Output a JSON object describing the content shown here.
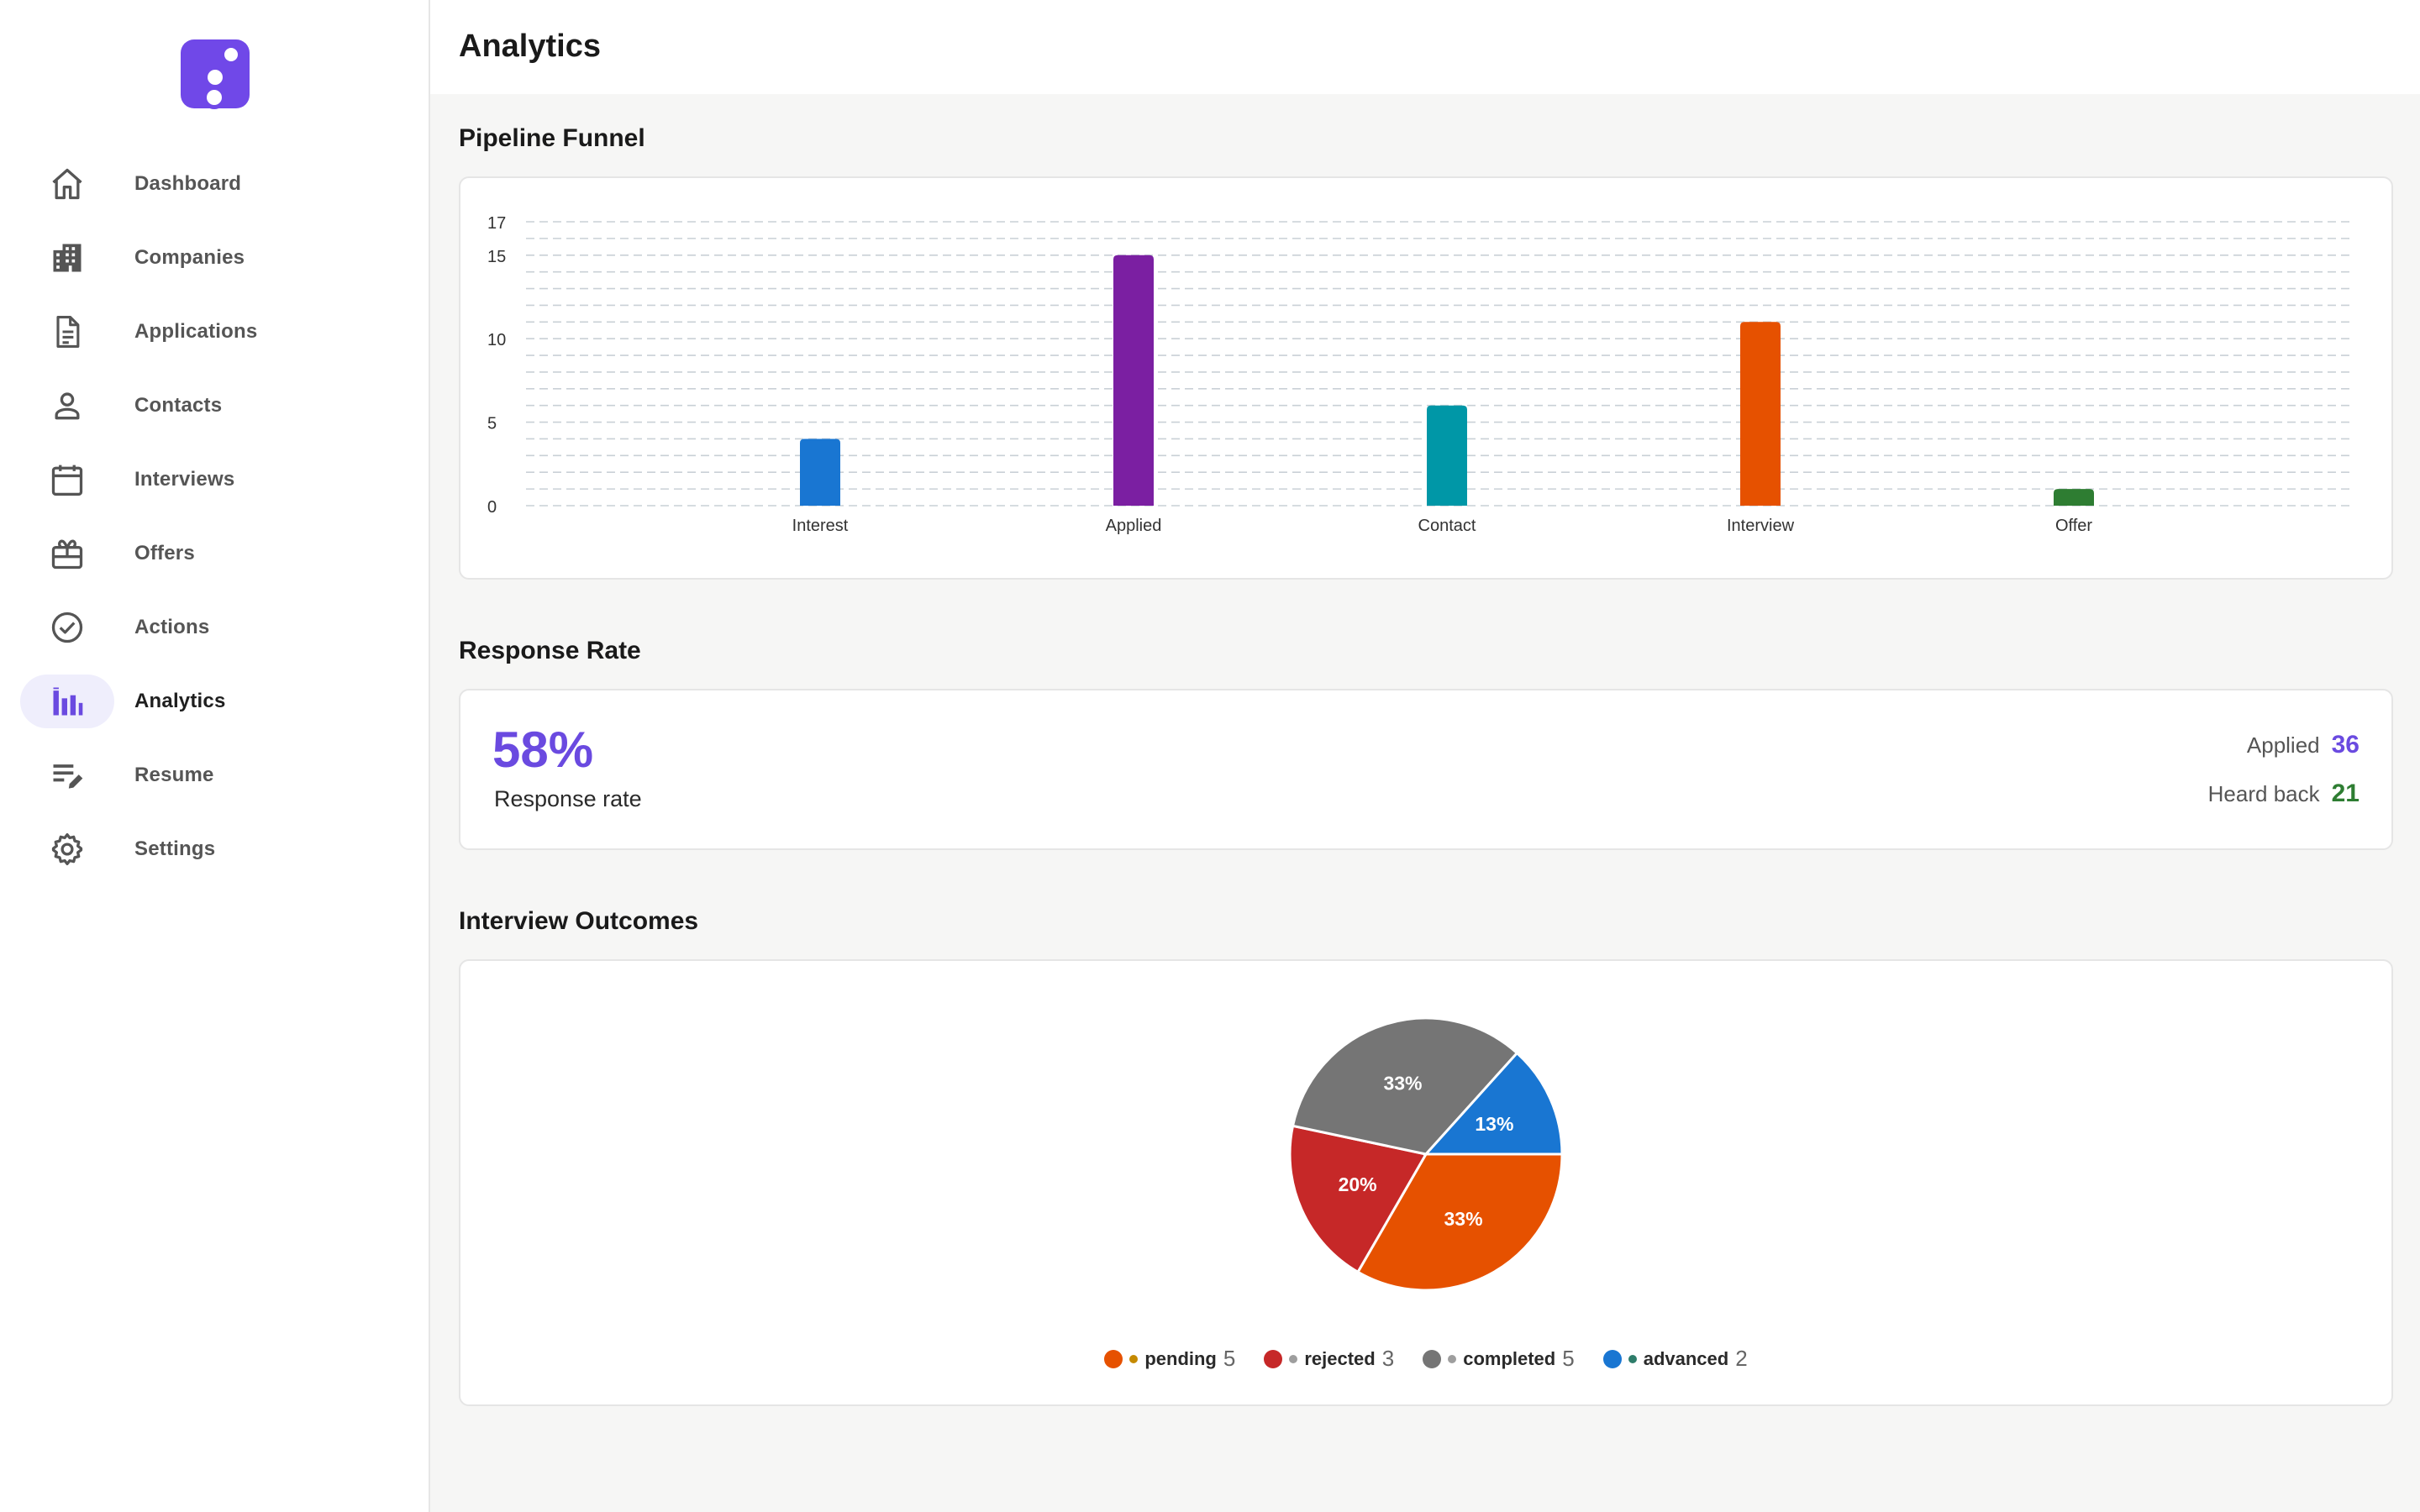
{
  "page": {
    "title": "Analytics"
  },
  "sidebar": {
    "items": [
      {
        "label": "Dashboard",
        "icon": "home-icon",
        "active": false
      },
      {
        "label": "Companies",
        "icon": "building-icon",
        "active": false
      },
      {
        "label": "Applications",
        "icon": "document-icon",
        "active": false
      },
      {
        "label": "Contacts",
        "icon": "person-icon",
        "active": false
      },
      {
        "label": "Interviews",
        "icon": "calendar-icon",
        "active": false
      },
      {
        "label": "Offers",
        "icon": "gift-icon",
        "active": false
      },
      {
        "label": "Actions",
        "icon": "check-circle-icon",
        "active": false
      },
      {
        "label": "Analytics",
        "icon": "bar-chart-icon",
        "active": true
      },
      {
        "label": "Resume",
        "icon": "edit-list-icon",
        "active": false
      },
      {
        "label": "Settings",
        "icon": "gear-icon",
        "active": false
      }
    ]
  },
  "sections": {
    "funnel_title": "Pipeline Funnel",
    "response_title": "Response Rate",
    "outcomes_title": "Interview Outcomes"
  },
  "response": {
    "rate": "58%",
    "rate_label": "Response rate",
    "applied_label": "Applied",
    "applied_value": "36",
    "heard_label": "Heard back",
    "heard_value": "21"
  },
  "colors": {
    "accent": "#6a4ae0",
    "green": "#2e7d32"
  },
  "chart_data": [
    {
      "type": "bar",
      "categories": [
        "Interest",
        "Applied",
        "Contact",
        "Interview",
        "Offer"
      ],
      "values": [
        4,
        15,
        6,
        11,
        1
      ],
      "colors": [
        "#1976d2",
        "#7b1fa2",
        "#0097a7",
        "#e65100",
        "#2e7d32"
      ],
      "yticks": [
        0,
        5,
        10,
        15,
        17
      ],
      "ylim": [
        0,
        17
      ],
      "grid": true
    },
    {
      "type": "pie",
      "slices": [
        {
          "label": "pending",
          "value": 5,
          "percent": "33%",
          "color": "#e65100"
        },
        {
          "label": "rejected",
          "value": 3,
          "percent": "20%",
          "color": "#c62828"
        },
        {
          "label": "completed",
          "value": 5,
          "percent": "33%",
          "color": "#757575"
        },
        {
          "label": "advanced",
          "value": 2,
          "percent": "13%",
          "color": "#1976d2"
        }
      ],
      "legend_mini_colors": [
        "#c58a00",
        "#9e9e9e",
        "#9e9e9e",
        "#2e7d6a"
      ],
      "legend": "bottom"
    }
  ]
}
